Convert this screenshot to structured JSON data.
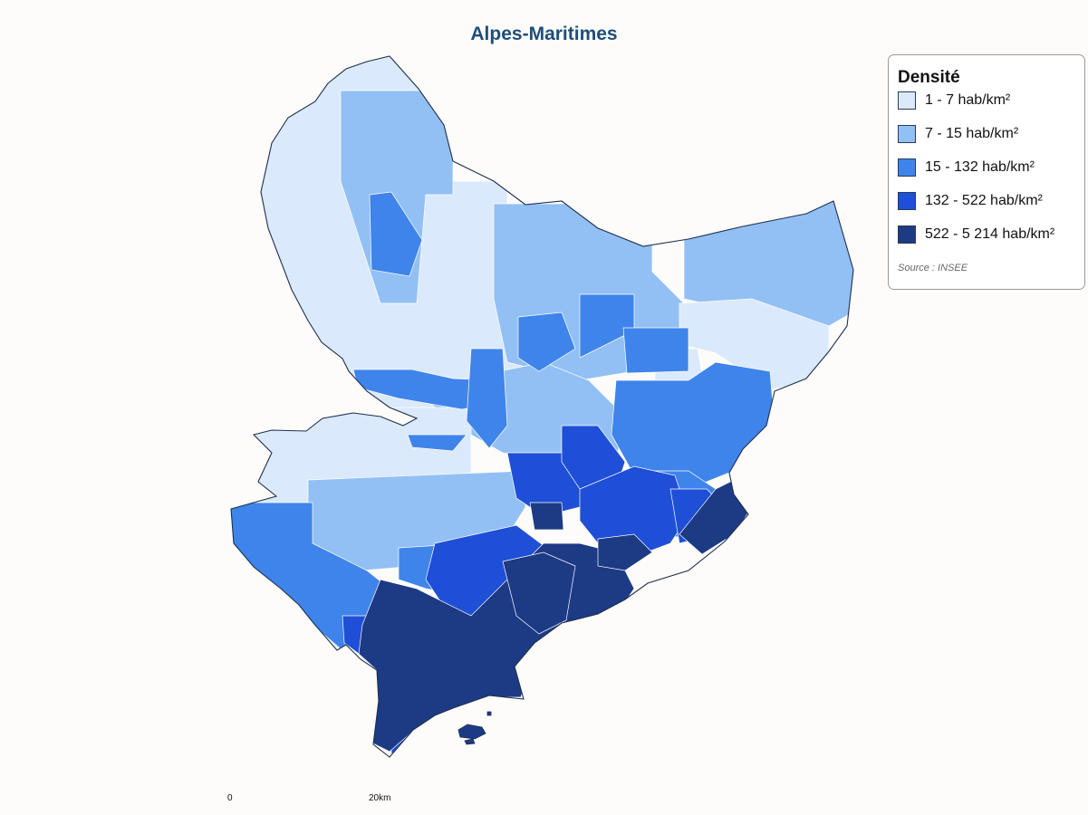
{
  "title": "Alpes-Maritimes",
  "legend": {
    "title": "Densité",
    "items": [
      {
        "label": "1 - 7 hab/km²",
        "color": "#dbe9fc"
      },
      {
        "label": "7 - 15 hab/km²",
        "color": "#92c0f5"
      },
      {
        "label": "15 - 132 hab/km²",
        "color": "#3f84ea"
      },
      {
        "label": "132 - 522 hab/km²",
        "color": "#1e4fd6"
      },
      {
        "label": "522 - 5 214 hab/km²",
        "color": "#1d3a85"
      }
    ],
    "source": "Source : INSEE"
  },
  "scale": {
    "start_label": "0",
    "end_label": "20km"
  },
  "map": {
    "border_color": "#ffffff",
    "outline_color": "#1f2f4d"
  }
}
